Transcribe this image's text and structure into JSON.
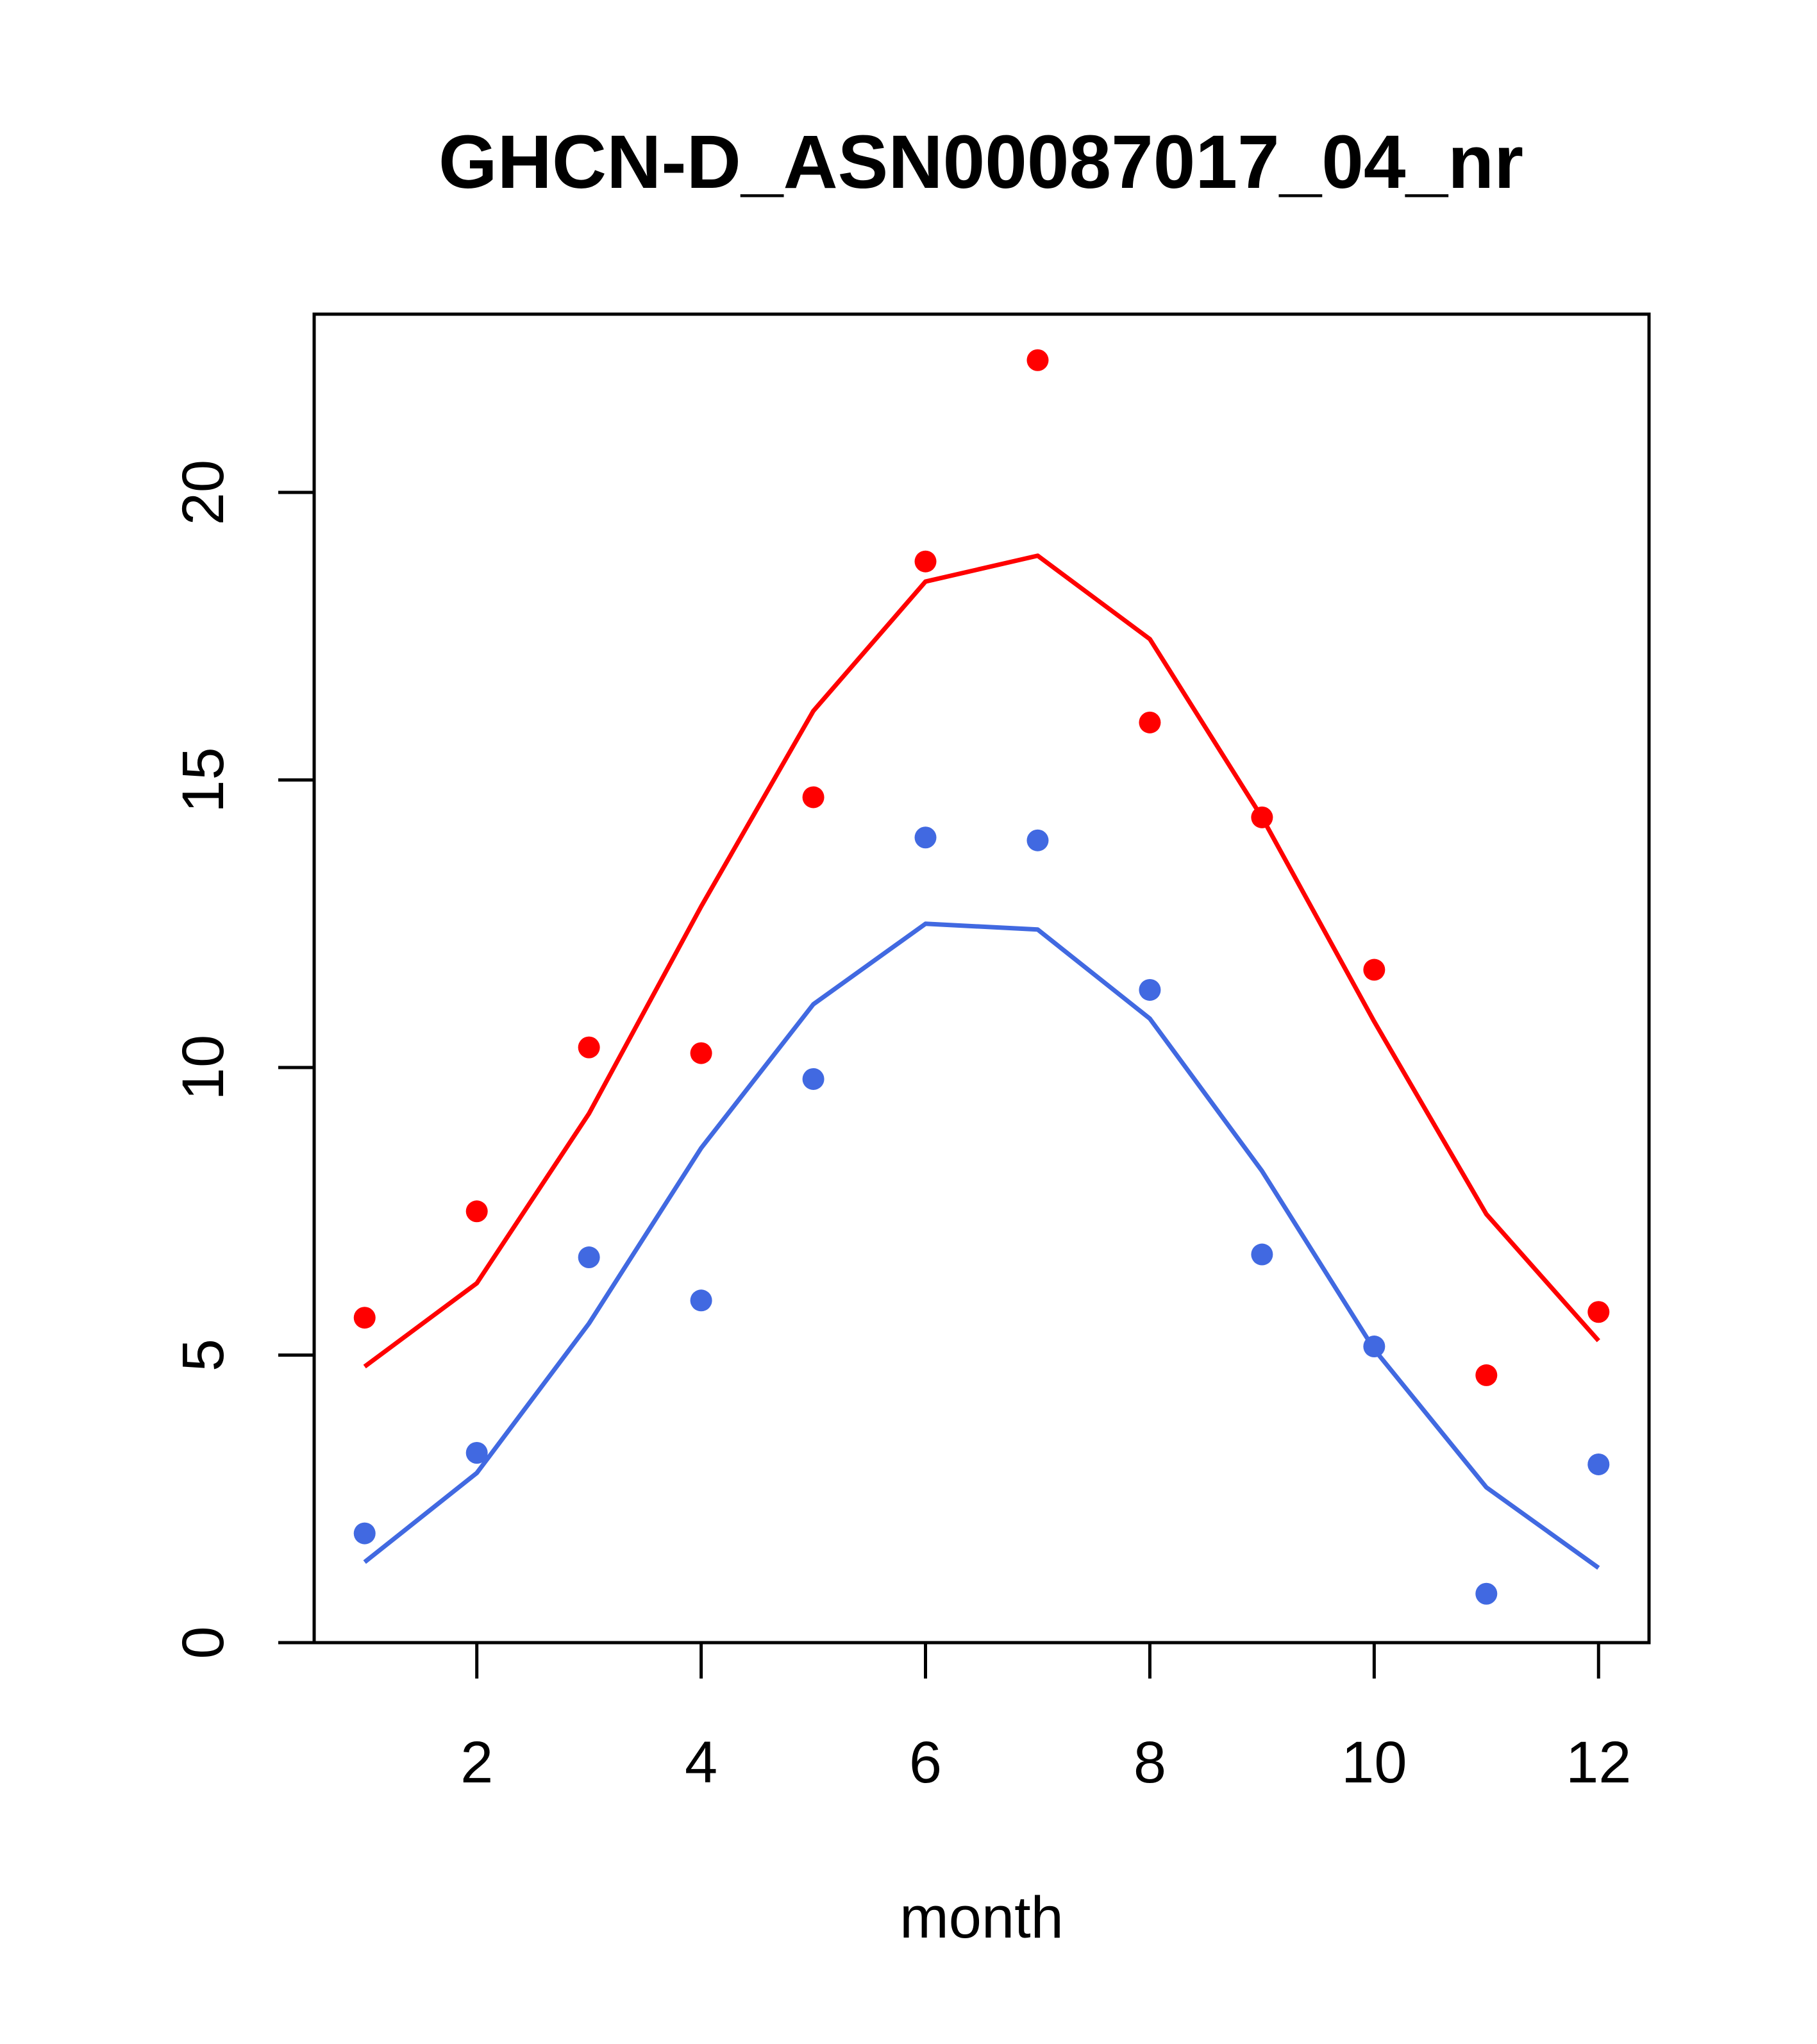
{
  "chart_data": {
    "type": "line",
    "title": "GHCN-D_ASN00087017_04_nr",
    "xlabel": "month",
    "ylabel": "",
    "xlim": [
      0.55,
      12.45
    ],
    "ylim": [
      0,
      23.1
    ],
    "xticks": [
      2,
      4,
      6,
      8,
      10,
      12
    ],
    "yticks": [
      0,
      5,
      10,
      15,
      20
    ],
    "grid": false,
    "colors": {
      "red": "#ff0000",
      "blue": "#4169e1"
    },
    "x": [
      1,
      2,
      3,
      4,
      5,
      6,
      7,
      8,
      9,
      10,
      11,
      12
    ],
    "series": [
      {
        "color": "#ff0000",
        "line": [
          4.8,
          6.25,
          9.2,
          12.8,
          16.2,
          18.45,
          18.9,
          17.45,
          14.35,
          10.8,
          7.45,
          5.25
        ],
        "points": [
          5.65,
          7.5,
          10.35,
          10.25,
          14.7,
          18.8,
          22.3,
          16.0,
          14.35,
          11.7,
          4.65,
          5.75
        ]
      },
      {
        "color": "#4169e1",
        "line": [
          1.4,
          2.95,
          5.55,
          8.6,
          11.1,
          12.5,
          12.4,
          10.85,
          8.2,
          5.1,
          2.7,
          1.3
        ],
        "points": [
          1.9,
          3.3,
          6.7,
          5.95,
          9.8,
          14.0,
          13.95,
          11.35,
          6.75,
          5.15,
          0.85,
          3.1
        ]
      }
    ]
  }
}
